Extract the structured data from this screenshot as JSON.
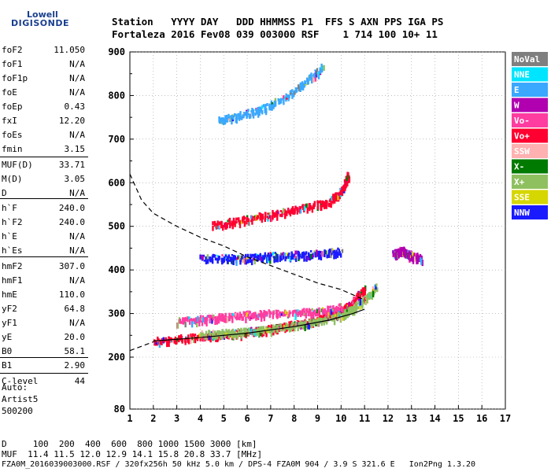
{
  "logo": {
    "line1": "Lowell",
    "line2": "DIGISONDE"
  },
  "header": {
    "labels": "Station   YYYY DAY   DDD HHMMSS P1  FFS S AXN PPS IGA PS",
    "values": "Fortaleza 2016 Fev08 039 003000 RSF    1 714 100 10+ 11"
  },
  "params": [
    {
      "label": "foF2",
      "value": "11.050"
    },
    {
      "label": "foF1",
      "value": "N/A"
    },
    {
      "label": "foF1p",
      "value": "N/A"
    },
    {
      "label": "foE",
      "value": "N/A"
    },
    {
      "label": "foEp",
      "value": "0.43"
    },
    {
      "label": "fxI",
      "value": "12.20"
    },
    {
      "label": "foEs",
      "value": "N/A"
    },
    {
      "label": "fmin",
      "value": "3.15"
    },
    {
      "label": "MUF(D)",
      "value": "33.71"
    },
    {
      "label": "M(D)",
      "value": "3.05"
    },
    {
      "label": "D",
      "value": "N/A"
    },
    {
      "label": "h`F",
      "value": "240.0"
    },
    {
      "label": "h`F2",
      "value": "240.0"
    },
    {
      "label": "h`E",
      "value": "N/A"
    },
    {
      "label": "h`Es",
      "value": "N/A"
    },
    {
      "label": "hmF2",
      "value": "307.0"
    },
    {
      "label": "hmF1",
      "value": "N/A"
    },
    {
      "label": "hmE",
      "value": "110.0"
    },
    {
      "label": "yF2",
      "value": "64.8"
    },
    {
      "label": "yF1",
      "value": "N/A"
    },
    {
      "label": "yE",
      "value": "20.0"
    },
    {
      "label": "B0",
      "value": "58.1"
    },
    {
      "label": "B1",
      "value": "2.90"
    },
    {
      "label": "C-level",
      "value": "44"
    }
  ],
  "auto": {
    "line1": "Auto:",
    "line2": "Artist5",
    "line3": "500200"
  },
  "footer": {
    "d_row": "D     100  200  400  600  800 1000 1500 3000 [km]",
    "muf_row": "MUF  11.4 11.5 12.0 12.9 14.1 15.8 20.8 33.7 [MHz]",
    "file_row": "FZA0M_2016039003000.RSF / 320fx256h 50 kHz 5.0 km / DPS-4 FZA0M 904 / 3.9 S 321.6 E   Ion2Png 1.3.20"
  },
  "chart_data": {
    "type": "scatter",
    "x_ticks": [
      "1",
      "2",
      "3",
      "4",
      "5",
      "6",
      "7",
      "8",
      "9",
      "10",
      "11",
      "12",
      "13",
      "14",
      "15",
      "16",
      "17"
    ],
    "y_ticks": [
      "80",
      "200",
      "300",
      "400",
      "500",
      "600",
      "700",
      "800",
      "900"
    ],
    "xlim": [
      1,
      17
    ],
    "ylim_nonlinear": [
      80,
      900
    ],
    "legend": [
      {
        "label": "NoVal",
        "color": "#7f7f7f"
      },
      {
        "label": "NNE",
        "color": "#00e5ff"
      },
      {
        "label": "E",
        "color": "#3aa8ff"
      },
      {
        "label": "W",
        "color": "#b000b0"
      },
      {
        "label": "Vo-",
        "color": "#ff3ca0"
      },
      {
        "label": "Vo+",
        "color": "#ff0030"
      },
      {
        "label": "SSW",
        "color": "#ffb0b0"
      },
      {
        "label": "X-",
        "color": "#007a00"
      },
      {
        "label": "X+",
        "color": "#8fc060"
      },
      {
        "label": "SSE",
        "color": "#d6d600"
      },
      {
        "label": "NNW",
        "color": "#1a1aff"
      }
    ],
    "legend_position": "right",
    "grid": "dotted",
    "traces": [
      {
        "name": "O-trace F2 (low)",
        "color": "#ff0030",
        "x": [
          2.0,
          3.0,
          4.0,
          5.0,
          6.0,
          7.0,
          8.0,
          9.0,
          9.5,
          10.0,
          10.5,
          11.0
        ],
        "y": [
          240,
          245,
          250,
          255,
          260,
          268,
          278,
          290,
          298,
          310,
          330,
          360
        ]
      },
      {
        "name": "X-trace F2",
        "color": "#8fc060",
        "x": [
          4.0,
          5.0,
          6.0,
          7.0,
          8.0,
          9.0,
          10.0,
          10.5,
          11.0,
          11.5
        ],
        "y": [
          255,
          258,
          262,
          268,
          275,
          285,
          300,
          315,
          335,
          365
        ]
      },
      {
        "name": "O-trace upper",
        "color": "#ff3ca0",
        "x": [
          3.0,
          4.0,
          5.0,
          6.0,
          7.0,
          8.0,
          9.0,
          10.0
        ],
        "y": [
          285,
          290,
          295,
          300,
          303,
          305,
          308,
          320
        ]
      },
      {
        "name": "2nd hop",
        "color": "#ff0030",
        "x": [
          4.5,
          5.5,
          6.5,
          7.5,
          8.5,
          9.5,
          10.0,
          10.3
        ],
        "y": [
          505,
          515,
          525,
          535,
          548,
          560,
          585,
          620
        ]
      },
      {
        "name": "3rd hop",
        "color": "#3aa8ff",
        "x": [
          4.8,
          5.5,
          6.5,
          7.5,
          8.5,
          9.2
        ],
        "y": [
          745,
          755,
          770,
          795,
          835,
          870
        ]
      },
      {
        "name": "spread echoes",
        "color": "#1a1aff",
        "x": [
          4.0,
          5.0,
          6.0,
          7.0,
          8.0,
          9.0,
          10.0
        ],
        "y": [
          430,
          430,
          430,
          435,
          438,
          440,
          445
        ]
      },
      {
        "name": "scattered high",
        "color": "#b000b0",
        "x": [
          12.2,
          12.4,
          12.6,
          12.8,
          13.0,
          13.4
        ],
        "y": [
          440,
          445,
          448,
          440,
          435,
          430
        ]
      }
    ],
    "profile_solid": {
      "x": [
        2.0,
        4.0,
        6.0,
        8.0,
        9.5,
        10.5,
        11.0
      ],
      "y": [
        237,
        245,
        255,
        270,
        285,
        300,
        310
      ]
    },
    "profile_dashed": {
      "x": [
        1.0,
        1.5,
        2.0,
        3.0,
        4.0,
        5.0,
        6.0,
        7.0,
        8.0,
        9.0,
        10.0,
        11.05
      ],
      "y": [
        620,
        560,
        530,
        500,
        475,
        455,
        430,
        410,
        390,
        370,
        355,
        330
      ]
    },
    "profile_bottom": {
      "x": [
        1.0,
        1.5,
        2.0
      ],
      "y": [
        215,
        225,
        235
      ]
    }
  }
}
